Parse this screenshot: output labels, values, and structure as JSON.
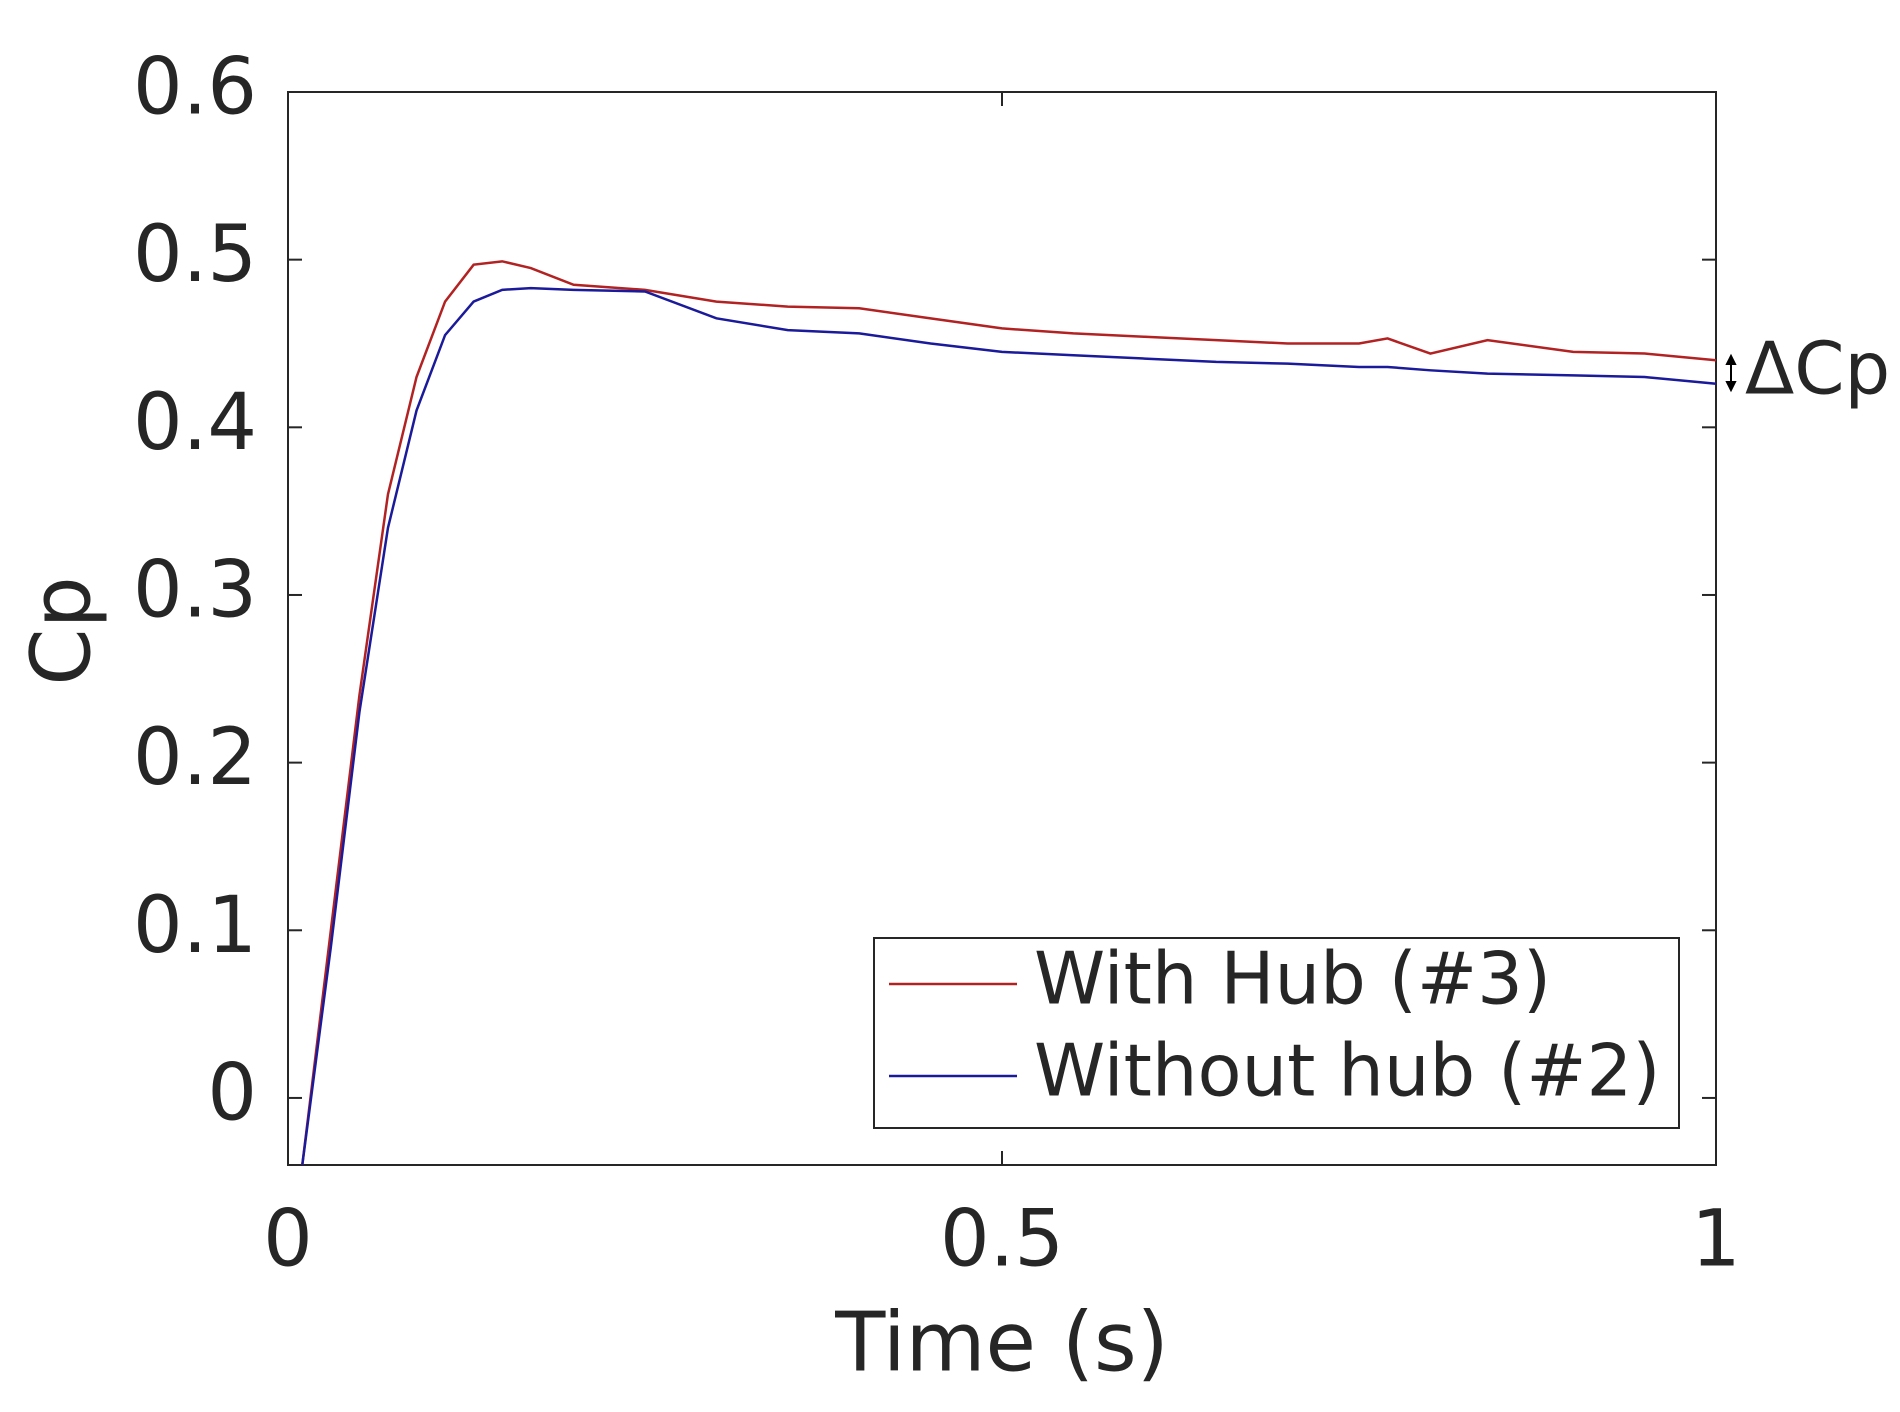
{
  "chart_data": {
    "type": "line",
    "xlabel": "Time (s)",
    "ylabel": "Cp",
    "annotation": "ΔCp",
    "x": [
      0.01,
      0.03,
      0.05,
      0.07,
      0.09,
      0.11,
      0.13,
      0.15,
      0.17,
      0.2,
      0.25,
      0.3,
      0.35,
      0.4,
      0.45,
      0.5,
      0.55,
      0.6,
      0.65,
      0.7,
      0.75,
      0.77,
      0.8,
      0.84,
      0.9,
      0.95,
      1.0
    ],
    "series": [
      {
        "name": "With Hub (#3)",
        "color": "#b22222",
        "values": [
          -0.04,
          0.1,
          0.24,
          0.36,
          0.43,
          0.475,
          0.497,
          0.499,
          0.495,
          0.485,
          0.482,
          0.475,
          0.472,
          0.471,
          0.465,
          0.459,
          0.456,
          0.454,
          0.452,
          0.45,
          0.45,
          0.453,
          0.444,
          0.452,
          0.445,
          0.444,
          0.44
        ]
      },
      {
        "name": "Without hub (#2)",
        "color": "#1a1a9a",
        "values": [
          -0.04,
          0.09,
          0.23,
          0.34,
          0.41,
          0.455,
          0.475,
          0.482,
          0.483,
          0.482,
          0.481,
          0.465,
          0.458,
          0.456,
          0.45,
          0.445,
          0.443,
          0.441,
          0.439,
          0.438,
          0.436,
          0.436,
          0.434,
          0.432,
          0.431,
          0.43,
          0.426
        ]
      }
    ],
    "xlim": [
      0,
      1
    ],
    "xticks": [
      0,
      0.5,
      1
    ],
    "ylim": [
      -0.04,
      0.6
    ],
    "yticks": [
      0,
      0.1,
      0.2,
      0.3,
      0.4,
      0.5,
      0.6
    ],
    "legend": "lower right",
    "grid": false
  }
}
